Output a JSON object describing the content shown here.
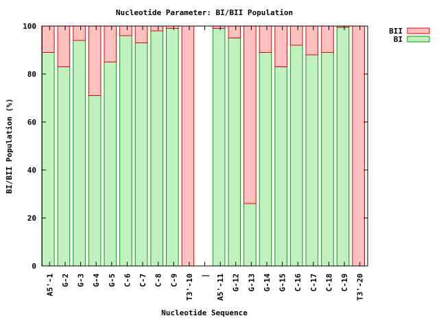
{
  "chart_data": {
    "type": "bar",
    "stacked": true,
    "title": "Nucleotide Parameter: BI/BII Population",
    "xlabel": "Nucleotide Sequence",
    "ylabel": "BI/BII Population (%)",
    "ylim": [
      0,
      100
    ],
    "yticks": [
      0,
      20,
      40,
      60,
      80,
      100
    ],
    "grid": false,
    "legend_position": "top-right",
    "categories": [
      "A5'-1",
      "G-2",
      "G-3",
      "G-4",
      "G-5",
      "C-6",
      "C-7",
      "C-8",
      "C-9",
      "T3'-10",
      "|",
      "A5'-11",
      "G-12",
      "G-13",
      "G-14",
      "G-15",
      "C-16",
      "C-17",
      "C-18",
      "C-19",
      "T3'-20"
    ],
    "series": [
      {
        "name": "BI",
        "color_fill": "#c1f0c1",
        "color_edge": "#00a000",
        "values": [
          89,
          83,
          94,
          71,
          85,
          96,
          93,
          98,
          99,
          0,
          null,
          99,
          95,
          26,
          89,
          83,
          92,
          88,
          89,
          99.5,
          0
        ]
      },
      {
        "name": "BII",
        "color_fill": "#ffc0c0",
        "color_edge": "#e00000",
        "values": [
          11,
          17,
          6,
          29,
          15,
          4,
          7,
          2,
          1,
          100,
          null,
          1,
          5,
          74,
          11,
          17,
          8,
          12,
          11,
          0.5,
          100
        ]
      }
    ]
  }
}
